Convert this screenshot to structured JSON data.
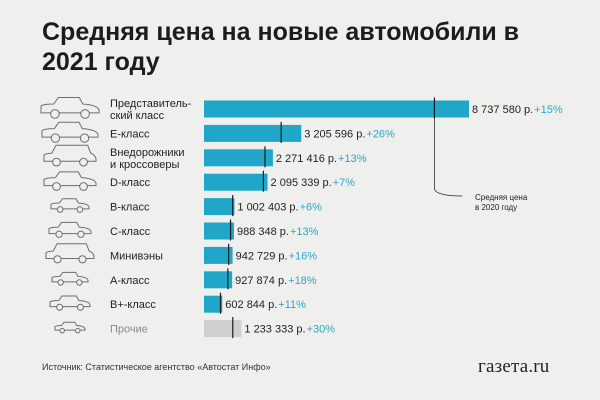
{
  "title": "Средняя цена на новые автомобили в 2021 году",
  "source": "Источник: Статистическое агентство «Автостат Инфо»",
  "logo": "газета.ru",
  "annotation": [
    "Средняя цена",
    "в 2020 году"
  ],
  "colors": {
    "bar": "#1fa6c9",
    "bar_other": "#cfcfcf",
    "pct": "#2aa7c9",
    "marker": "#1a1a1a"
  },
  "chart_data": {
    "type": "bar",
    "orientation": "horizontal",
    "categories": [
      [
        "Представитель-",
        "ский класс"
      ],
      [
        "Е-класс"
      ],
      [
        "Внедорожники",
        "и кроссоверы"
      ],
      [
        "D-класс"
      ],
      [
        "В-класс"
      ],
      [
        "С-класс"
      ],
      [
        "Минивэны"
      ],
      [
        "А-класс"
      ],
      [
        "В+-класс"
      ],
      [
        "Прочие"
      ]
    ],
    "values": [
      8737580,
      3205596,
      2271416,
      2095339,
      1002403,
      988348,
      942729,
      927874,
      602844,
      1233333
    ],
    "value_labels": [
      "8 737 580 р.",
      "3 205 596 р.",
      "2 271 416 р.",
      "2 095 339 р.",
      "1 002 403 р.",
      "988 348 р.",
      "942 729 р.",
      "927 874 р.",
      "602 844 р.",
      "1 233 333 р."
    ],
    "changes": [
      "+15%",
      "+26%",
      "+13%",
      "+7%",
      "+6%",
      "+13%",
      "+16%",
      "+18%",
      "+11%",
      "+30%"
    ],
    "prev_year_values": [
      7597896,
      2544124,
      2010103,
      1958261,
      945663,
      874644,
      812697,
      786334,
      543103,
      948718
    ],
    "icons": [
      "sedan-exec-car-icon",
      "e-class-car-icon",
      "suv-car-icon",
      "d-class-car-icon",
      "b-class-car-icon",
      "c-class-car-icon",
      "minivan-car-icon",
      "a-class-car-icon",
      "b-plus-class-car-icon",
      "other-car-icon"
    ],
    "xlim": [
      0,
      8737580
    ],
    "grid": false,
    "legend": "none"
  }
}
